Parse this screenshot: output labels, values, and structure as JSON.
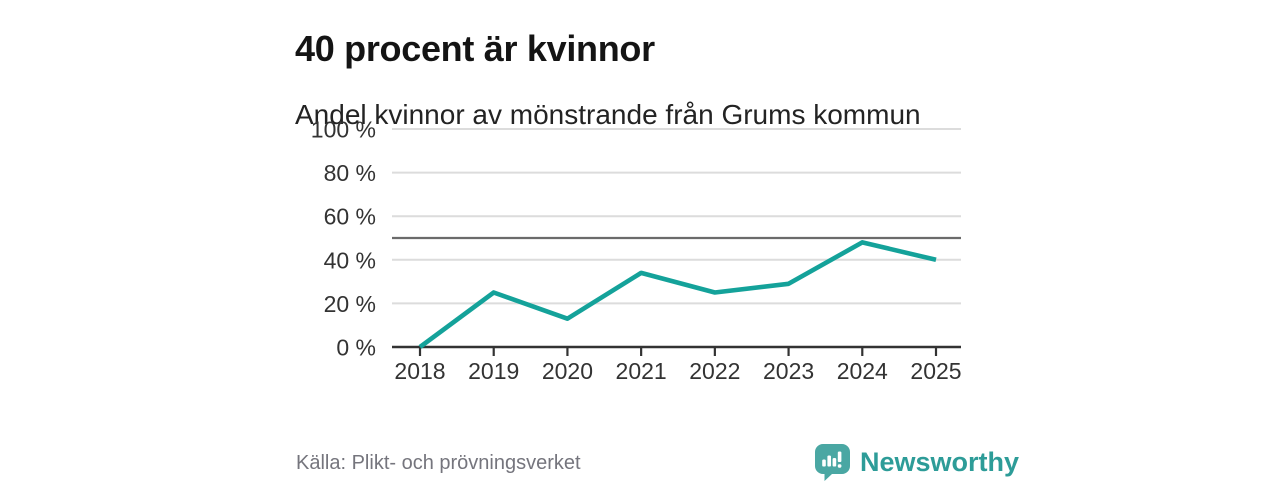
{
  "chart_data": {
    "type": "line",
    "title": "40 procent är kvinnor",
    "subtitle": "Andel kvinnor av mönstrande från Grums kommun",
    "categories": [
      "2018",
      "2019",
      "2020",
      "2021",
      "2022",
      "2023",
      "2024",
      "2025"
    ],
    "values": [
      0,
      25,
      13,
      34,
      25,
      29,
      48,
      40
    ],
    "unit": "%",
    "ylim": [
      0,
      100
    ],
    "yticks": [
      0,
      20,
      40,
      60,
      80,
      100
    ],
    "ytick_suffix": " %",
    "reference_line_y": 50,
    "grid": true,
    "legend": "none"
  },
  "footer": {
    "source": "Källa: Plikt- och prövningsverket",
    "brand": "Newsworthy"
  },
  "colors": {
    "accent": "#14a29a",
    "grid": "#dcdcdc",
    "axis": "#333333",
    "axis_text": "#333333",
    "reference_line": "#6b6b6b",
    "source_text": "#75757d",
    "logo_icon": "#4aa7a3",
    "logo_text": "#2d9c98",
    "title_text": "#141414"
  }
}
